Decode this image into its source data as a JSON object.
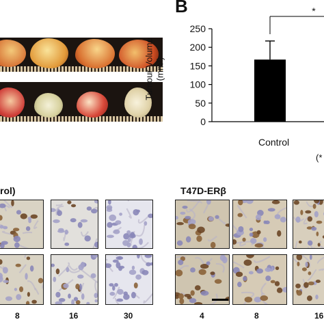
{
  "panel_b": {
    "label": "B"
  },
  "groups": {
    "left_partial": "rol)",
    "right": "T47D-ERβ"
  },
  "timepoints_left": [
    "8",
    "16",
    "30"
  ],
  "timepoints_right": [
    "4",
    "8",
    "16"
  ],
  "chart_data": {
    "type": "bar",
    "categories": [
      "Control"
    ],
    "values": [
      167
    ],
    "error": [
      50
    ],
    "ylabel": "Tumour Volume (mm³)",
    "ylabel_line1": "Tumour Volume",
    "ylabel_line2": "(mm³)",
    "ylim": [
      0,
      250
    ],
    "yticks": [
      "0",
      "50",
      "100",
      "150",
      "200",
      "250"
    ],
    "significance": "*",
    "footnote_partial": "(*",
    "bar_color": "#000000",
    "grid": false
  }
}
